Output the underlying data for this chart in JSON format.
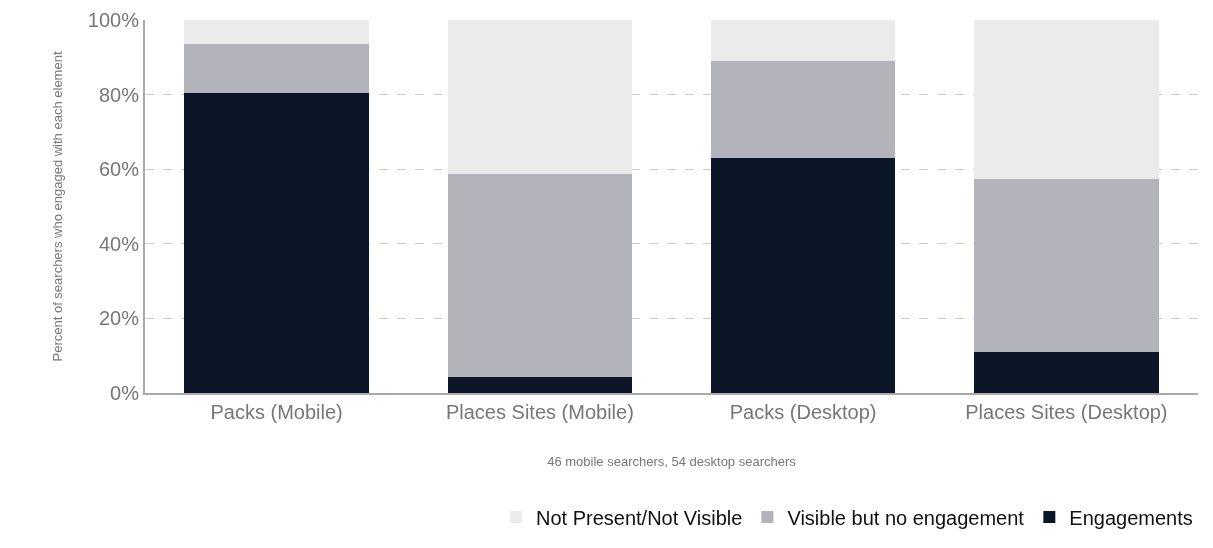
{
  "chart_data": {
    "type": "bar",
    "stacked": true,
    "categories": [
      "Packs (Mobile)",
      "Places Sites (Mobile)",
      "Packs (Desktop)",
      "Places Sites (Desktop)"
    ],
    "series": [
      {
        "name": "Engagements",
        "color": "#0b1628",
        "values": [
          80.4,
          4.3,
          63.0,
          11.1
        ]
      },
      {
        "name": "Visible but no engagement",
        "color": "#b3b3bb",
        "values": [
          13.1,
          54.3,
          25.9,
          46.3
        ]
      },
      {
        "name": "Not Present/Not Visible",
        "color": "#ebebeb",
        "values": [
          6.5,
          41.4,
          11.1,
          42.6
        ]
      }
    ],
    "ylabel": "Percent of searchers who engaged with each element",
    "xlabel": "46 mobile searchers, 54 desktop searchers",
    "ylim": [
      0,
      100
    ],
    "yticks": [
      {
        "value": 0,
        "label": "0%"
      },
      {
        "value": 20,
        "label": "20%"
      },
      {
        "value": 40,
        "label": "40%"
      },
      {
        "value": 60,
        "label": "60%"
      },
      {
        "value": 80,
        "label": "80%"
      },
      {
        "value": 100,
        "label": "100%"
      }
    ],
    "grid": "y",
    "legend": "bottom right"
  }
}
